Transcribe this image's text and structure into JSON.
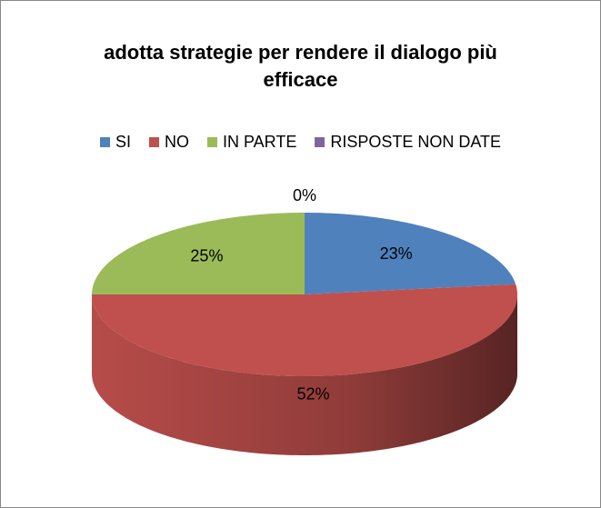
{
  "chart_data": {
    "type": "pie3d",
    "title": "adotta strategie per rendere il dialogo più efficace",
    "categories": [
      "SI",
      "NO",
      "IN PARTE",
      "RISPOSTE NON DATE"
    ],
    "values": [
      23,
      52,
      25,
      0
    ],
    "value_labels": [
      "23%",
      "52%",
      "25%",
      "0%"
    ],
    "colors": [
      "#4f81bd",
      "#c0504d",
      "#9bbb59",
      "#8064a2"
    ],
    "legend": "top"
  }
}
